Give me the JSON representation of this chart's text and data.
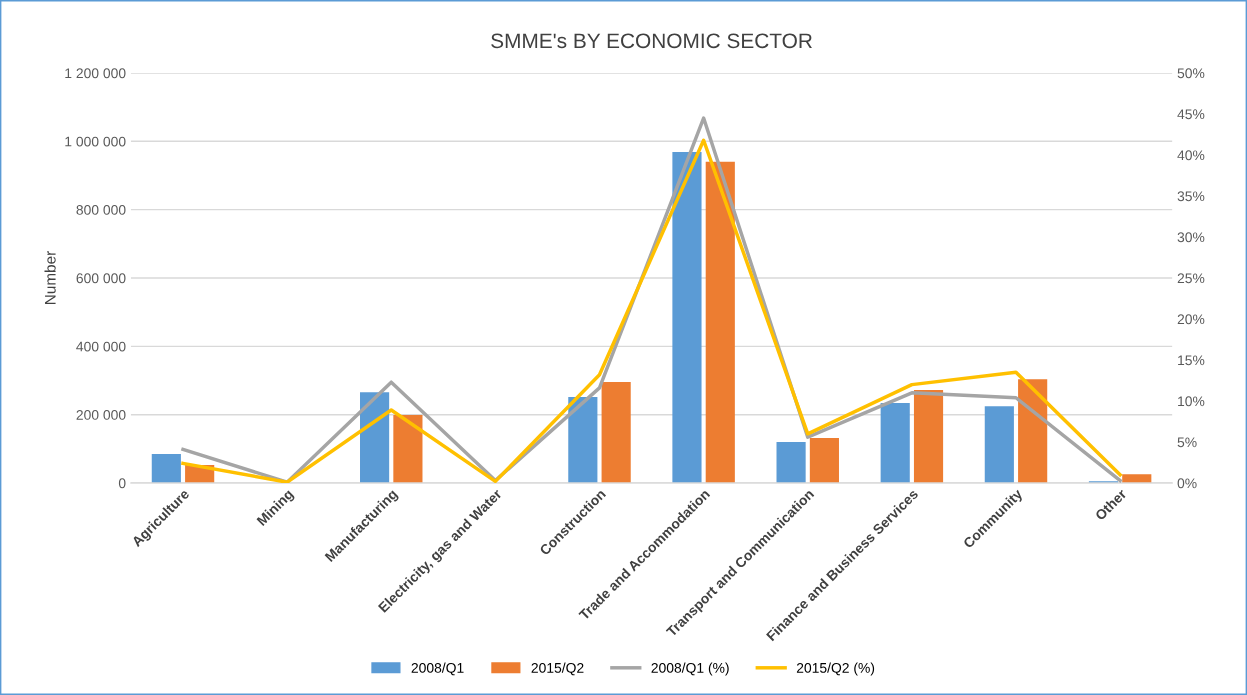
{
  "chart_data": {
    "type": "bar",
    "title": "SMME's BY ECONOMIC SECTOR",
    "ylabel": "Number",
    "categories": [
      "Agriculture",
      "Mining",
      "Manufacturing",
      "Electricity, gas and Water",
      "Construction",
      "Trade and Accommodation",
      "Transport and Communication",
      "Finance and Business Services",
      "Community",
      "Other"
    ],
    "series": [
      {
        "name": "2008/Q1",
        "color": "#5b9bd5",
        "values": [
          85000,
          null,
          266000,
          null,
          252000,
          969000,
          120000,
          234000,
          225000,
          5000
        ]
      },
      {
        "name": "2015/Q2",
        "color": "#ed7d31",
        "values": [
          53000,
          null,
          199000,
          null,
          296000,
          940000,
          132000,
          272000,
          304000,
          26000
        ]
      },
      {
        "name": "2008/Q1 (%)",
        "type": "line",
        "axis": "y2",
        "color": "#a5a5a5",
        "values": [
          4.1,
          0.1,
          12.3,
          0.3,
          11.6,
          44.5,
          5.6,
          11.0,
          10.4,
          0.3
        ]
      },
      {
        "name": "2015/Q2 (%)",
        "type": "line",
        "axis": "y2",
        "color": "#ffc000",
        "values": [
          2.4,
          0.1,
          8.9,
          0.2,
          13.2,
          41.8,
          6.0,
          12.0,
          13.5,
          1.0
        ]
      }
    ],
    "ylim": [
      0,
      1200000
    ],
    "yticks": [
      {
        "value": 0,
        "label": "0"
      },
      {
        "value": 200000,
        "label": "200 000"
      },
      {
        "value": 400000,
        "label": "400 000"
      },
      {
        "value": 600000,
        "label": "600 000"
      },
      {
        "value": 800000,
        "label": "800 000"
      },
      {
        "value": 1000000,
        "label": "1 000 000"
      },
      {
        "value": 1200000,
        "label": "1 200 000"
      }
    ],
    "y2lim": [
      0,
      50
    ],
    "y2ticks": [
      {
        "value": 0,
        "label": "0%"
      },
      {
        "value": 5,
        "label": "5%"
      },
      {
        "value": 10,
        "label": "10%"
      },
      {
        "value": 15,
        "label": "15%"
      },
      {
        "value": 20,
        "label": "20%"
      },
      {
        "value": 25,
        "label": "25%"
      },
      {
        "value": 30,
        "label": "30%"
      },
      {
        "value": 35,
        "label": "35%"
      },
      {
        "value": 40,
        "label": "40%"
      },
      {
        "value": 45,
        "label": "45%"
      },
      {
        "value": 50,
        "label": "50%"
      }
    ],
    "grid": "y",
    "legend": "bottom",
    "marker": "none",
    "line_style": "solid"
  }
}
